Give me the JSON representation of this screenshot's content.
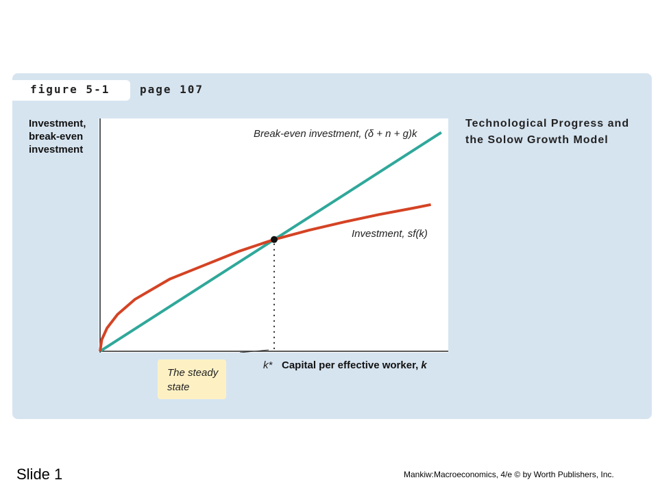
{
  "header": {
    "figure_label": "figure 5-1",
    "page_label": "page 107"
  },
  "chart_data": {
    "type": "line",
    "title": "Technological Progress and the Solow Growth Model",
    "ylabel": "Investment, break-even investment",
    "xlabel": "Capital per effective worker, ",
    "xlabel_var": "k",
    "xlim": [
      0,
      1
    ],
    "ylim": [
      0,
      1
    ],
    "grid": false,
    "steady_state": {
      "label": "k*",
      "x": 0.5,
      "y": 0.48
    },
    "series": [
      {
        "name": "Break-even investment, (δ + n + g)k",
        "color": "#2fa89a",
        "shape": "linear",
        "x": [
          0,
          0.98
        ],
        "y": [
          0,
          0.94
        ]
      },
      {
        "name": "Investment, sf(k)",
        "color": "#d44324",
        "shape": "concave",
        "x": [
          0,
          0.005,
          0.02,
          0.05,
          0.1,
          0.2,
          0.3,
          0.4,
          0.5,
          0.6,
          0.7,
          0.8,
          0.9,
          0.95
        ],
        "y": [
          0,
          0.05,
          0.1,
          0.158,
          0.223,
          0.31,
          0.37,
          0.43,
          0.48,
          0.52,
          0.555,
          0.587,
          0.615,
          0.63
        ]
      }
    ],
    "annotation": "The steady state"
  },
  "footer": {
    "slide_label": "Slide 1",
    "credit": "Mankiw:Macroeconomics, 4/e © by Worth Publishers, Inc."
  }
}
